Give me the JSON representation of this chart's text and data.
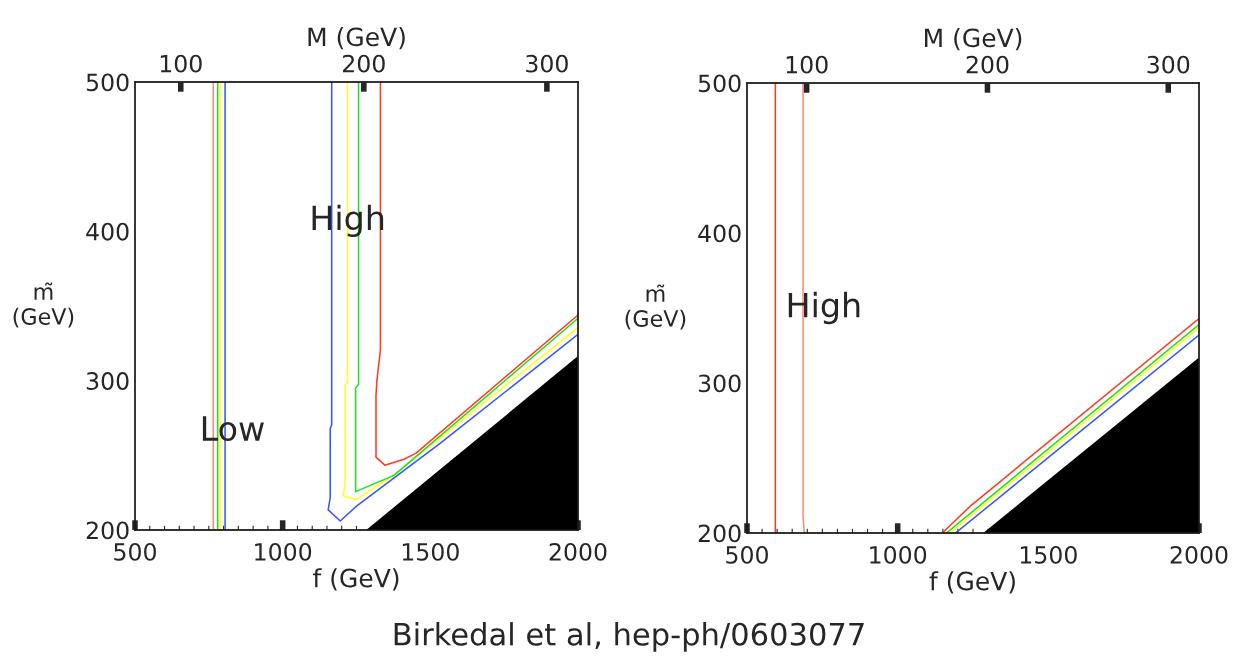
{
  "chart_data": [
    {
      "type": "line",
      "xlabel": "f (GeV)",
      "ylabel": "m̃\n(GeV)",
      "x2label": "M (GeV)",
      "xlim": [
        500,
        2000
      ],
      "ylim": [
        200,
        500
      ],
      "xticks": [
        500,
        1000,
        1500,
        2000
      ],
      "yticks": [
        200,
        300,
        400,
        500
      ],
      "x2lim": [
        75,
        317
      ],
      "x2ticks": [
        100,
        200,
        300
      ],
      "series": [
        {
          "type": "area",
          "color": "#000000",
          "x": [
            1283,
            2000
          ],
          "values": [
            200,
            316.5
          ]
        },
        {
          "color": "#ff8a70",
          "x": [
            765,
            765
          ],
          "values": [
            200,
            500
          ]
        },
        {
          "color": "#22dd22",
          "x": [
            780,
            780
          ],
          "values": [
            200,
            500
          ]
        },
        {
          "color": "#ffff22",
          "x": [
            788,
            788
          ],
          "values": [
            200,
            500
          ]
        },
        {
          "color": "#3355ff",
          "x": [
            805,
            805
          ],
          "values": [
            200,
            500
          ]
        },
        {
          "color": "#3355ff",
          "x": [
            1166,
            1166,
            1161,
            1161,
            1154,
            1195,
            1250,
            1533,
            2000
          ],
          "values": [
            500,
            270.5,
            268,
            221.7,
            213.5,
            206,
            216,
            258,
            331
          ]
        },
        {
          "color": "#ffff22",
          "x": [
            1220,
            1220,
            1211,
            1211,
            1204,
            1249,
            1370,
            2000
          ],
          "values": [
            500,
            299,
            297,
            229.8,
            223,
            220.3,
            236,
            335.5
          ]
        },
        {
          "color": "#22dd22",
          "x": [
            1257,
            1257,
            1247,
            1247,
            1377,
            2000
          ],
          "values": [
            500,
            297.6,
            295,
            225.7,
            236.6,
            341.8
          ]
        },
        {
          "color": "#ff3b1f",
          "x": [
            1331,
            1331,
            1319,
            1316,
            1316,
            1346,
            1411,
            1452,
            2000
          ],
          "values": [
            500,
            320.6,
            300,
            290,
            248.8,
            243.4,
            247.4,
            251.5,
            344
          ]
        }
      ],
      "annotations": [
        "High",
        "Low"
      ]
    },
    {
      "type": "line",
      "xlabel": "f (GeV)",
      "ylabel": "m̃\n(GeV)",
      "x2label": "M (GeV)",
      "xlim": [
        500,
        2000
      ],
      "ylim": [
        200,
        500
      ],
      "xticks": [
        500,
        1000,
        1500,
        2000
      ],
      "yticks": [
        200,
        300,
        400,
        500
      ],
      "x2lim": [
        67,
        317
      ],
      "x2ticks": [
        100,
        200,
        300
      ],
      "series": [
        {
          "type": "area",
          "color": "#000000",
          "x": [
            1284,
            2000
          ],
          "values": [
            200,
            317
          ]
        },
        {
          "color": "#ff3b1f",
          "x": [
            594,
            594
          ],
          "values": [
            200,
            500
          ]
        },
        {
          "color": "#ff8a70",
          "x": [
            686,
            686,
            690
          ],
          "values": [
            500,
            211.5,
            200
          ]
        },
        {
          "color": "#3355ff",
          "x": [
            1192,
            2000
          ],
          "values": [
            200,
            332
          ]
        },
        {
          "color": "#ffff22",
          "x": [
            1173,
            2000
          ],
          "values": [
            200,
            337
          ]
        },
        {
          "color": "#22dd22",
          "x": [
            1162,
            2000
          ],
          "values": [
            200,
            339
          ]
        },
        {
          "color": "#ff3b1f",
          "x": [
            1148,
            1243,
            2000
          ],
          "values": [
            200,
            218.3,
            343
          ]
        }
      ],
      "annotations": [
        "High",
        "Birkedal et al, hep-ph/0603077"
      ]
    }
  ]
}
